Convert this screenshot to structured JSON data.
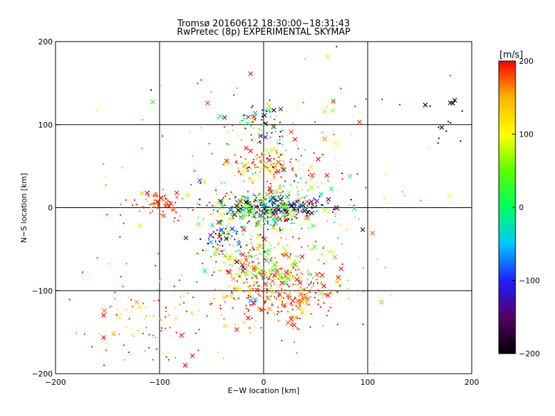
{
  "chart_data": {
    "type": "scatter",
    "title": "Tromsø 20160612 18:30:00−18:31:43",
    "subtitle": "RwPretec (8p) EXPERIMENTAL SKYMAP",
    "xlabel": "E−W location [km]",
    "ylabel": "N−S location [km]",
    "xlim": [
      -200,
      200
    ],
    "ylim": [
      -200,
      200
    ],
    "xticks": [
      -200,
      -100,
      0,
      100,
      200
    ],
    "yticks": [
      -200,
      -100,
      0,
      100,
      200
    ],
    "x_tick_labels": [
      "−200",
      "−100",
      "0",
      "100",
      "200"
    ],
    "y_tick_labels": [
      "−200",
      "−100",
      "0",
      "100",
      "200"
    ],
    "grid_lines_x": [
      -100,
      0,
      100
    ],
    "grid_lines_y": [
      -100,
      0,
      100
    ],
    "colorbar": {
      "label": "[m/s]",
      "range": [
        -200,
        200
      ],
      "ticks": [
        200,
        100,
        0,
        -100,
        -200
      ],
      "tick_labels": [
        "200",
        "100",
        "0",
        "−100",
        "−200"
      ],
      "colormap": [
        "#000000",
        "#550066",
        "#1e1eff",
        "#00c8ff",
        "#00ff60",
        "#5aff00",
        "#ffff00",
        "#ffb400",
        "#ff0000"
      ]
    },
    "clusters": [
      {
        "cx": 0,
        "cy": 0,
        "sx": 25,
        "sy": 10,
        "n": 380,
        "vmean": 20,
        "vsd": 120
      },
      {
        "cx": 28,
        "cy": 0,
        "sx": 18,
        "sy": 6,
        "n": 90,
        "vmean": -170,
        "vsd": 40
      },
      {
        "cx": 0,
        "cy": 55,
        "sx": 14,
        "sy": 10,
        "n": 110,
        "vmean": 170,
        "vsd": 50
      },
      {
        "cx": 0,
        "cy": 100,
        "sx": 14,
        "sy": 14,
        "n": 70,
        "vmean": -40,
        "vsd": 140
      },
      {
        "cx": 10,
        "cy": -70,
        "sx": 28,
        "sy": 18,
        "n": 260,
        "vmean": 90,
        "vsd": 90
      },
      {
        "cx": 15,
        "cy": -108,
        "sx": 28,
        "sy": 18,
        "n": 260,
        "vmean": 190,
        "vsd": 35
      },
      {
        "cx": -100,
        "cy": 5,
        "sx": 14,
        "sy": 8,
        "n": 70,
        "vmean": 190,
        "vsd": 25
      },
      {
        "cx": -110,
        "cy": -135,
        "sx": 35,
        "sy": 35,
        "n": 110,
        "vmean": 180,
        "vsd": 60
      },
      {
        "cx": -40,
        "cy": -40,
        "sx": 16,
        "sy": 10,
        "n": 60,
        "vmean": -150,
        "vsd": 80
      },
      {
        "cx": 25,
        "cy": 30,
        "sx": 22,
        "sy": 25,
        "n": 90,
        "vmean": 60,
        "vsd": 140
      },
      {
        "cx": 0,
        "cy": 0,
        "sx": 75,
        "sy": 80,
        "n": 260,
        "vmean": 120,
        "vsd": 120
      },
      {
        "cx": 185,
        "cy": 105,
        "sx": 10,
        "sy": 15,
        "n": 14,
        "vmean": -200,
        "vsd": 10
      }
    ],
    "marker_styles": [
      "dot",
      "cross"
    ]
  }
}
